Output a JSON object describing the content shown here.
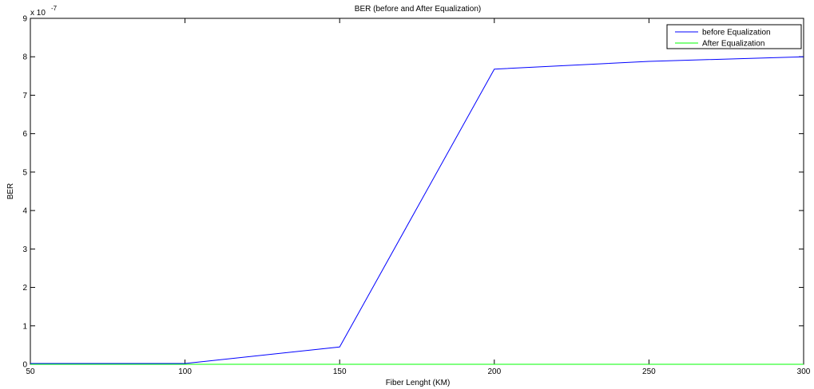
{
  "chart_data": {
    "type": "line",
    "title": "BER (before and After Equalization)",
    "xlabel": "Fiber Lenght (KM)",
    "ylabel": "BER",
    "y_exponent_label": "x 10",
    "y_exponent_power": "-7",
    "xlim": [
      50,
      300
    ],
    "ylim": [
      0,
      9
    ],
    "x_ticks": [
      50,
      100,
      150,
      200,
      250,
      300
    ],
    "y_ticks": [
      0,
      1,
      2,
      3,
      4,
      5,
      6,
      7,
      8,
      9
    ],
    "grid": false,
    "legend_position": "top-right",
    "x": [
      50,
      100,
      150,
      200,
      250,
      300
    ],
    "series": [
      {
        "name": "before Equalization",
        "color": "#0000ff",
        "values": [
          0.02,
          0.02,
          0.45,
          7.68,
          7.88,
          8.0
        ]
      },
      {
        "name": "After Equalization",
        "color": "#00ff00",
        "values": [
          0,
          0,
          0,
          0,
          0,
          0
        ]
      }
    ]
  }
}
